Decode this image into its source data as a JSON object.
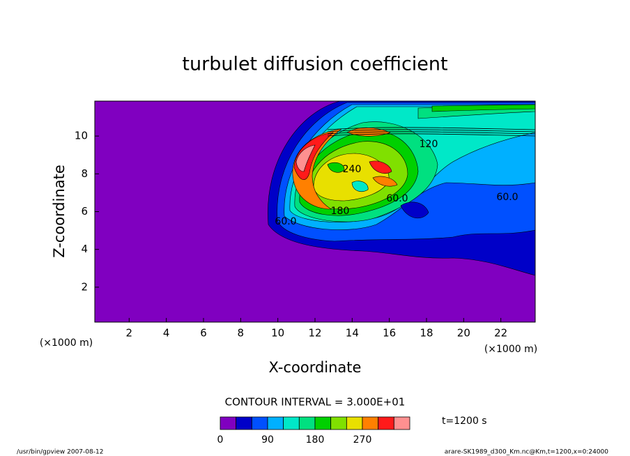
{
  "chart_data": {
    "type": "contour",
    "title": "turbulet diffusion coefficient",
    "x_label": "X-coordinate",
    "y_label": "Z-coordinate",
    "x_unit": "(×1000 m)",
    "y_unit": "(×1000 m)",
    "xlim": [
      0.15,
      23.85
    ],
    "ylim": [
      0.15,
      11.85
    ],
    "xticks": [
      2,
      4,
      6,
      8,
      10,
      12,
      14,
      16,
      18,
      20,
      22
    ],
    "yticks": [
      2,
      4,
      6,
      8,
      10
    ],
    "grid": false,
    "contour_interval": "CONTOUR INTERVAL = 3.000E+01",
    "contour_labels": [
      "60.0",
      "60.0",
      "240",
      "180",
      "120",
      "60.0"
    ],
    "colorbar": {
      "levels": [
        0,
        30,
        60,
        90,
        120,
        150,
        180,
        210,
        240,
        270,
        300,
        330,
        360
      ],
      "colors": [
        "#8000c0",
        "#0000c8",
        "#0050ff",
        "#00b0ff",
        "#00e8c8",
        "#00e080",
        "#00d000",
        "#80e000",
        "#e8e000",
        "#ff8000",
        "#ff1a1a",
        "#ff9090"
      ],
      "ticks": [
        0,
        90,
        180,
        270
      ]
    },
    "time_label": "t=1200 s",
    "footer_left": "/usr/bin/gpview  2007-08-12",
    "footer_right": "arare-SK1989_d300_Km.nc@Km,t=1200,x=0:24000"
  }
}
